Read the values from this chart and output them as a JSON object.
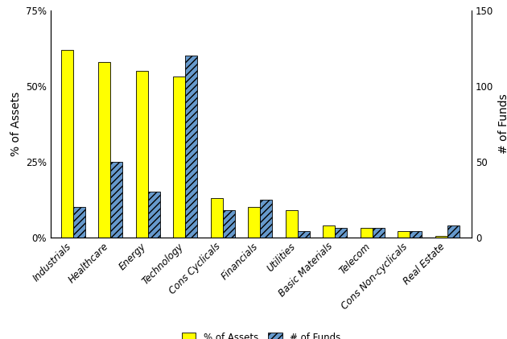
{
  "categories": [
    "Industrials",
    "Healthcare",
    "Energy",
    "Technology",
    "Cons Cyclicals",
    "Financials",
    "Utilities",
    "Basic Materials",
    "Telecom",
    "Cons Non-cyclicals",
    "Real Estate"
  ],
  "pct_assets": [
    62,
    58,
    55,
    53,
    13,
    10,
    9,
    4,
    3,
    2,
    0.5
  ],
  "num_funds": [
    20,
    50,
    30,
    120,
    18,
    25,
    4,
    6,
    6,
    4,
    8
  ],
  "bar_color_assets": "#ffff00",
  "bar_color_funds_face": "#6699cc",
  "ylabel_left": "% of Assets",
  "ylabel_right": "# of Funds",
  "ylim_left": [
    0,
    75
  ],
  "ylim_right": [
    0,
    150
  ],
  "yticks_left": [
    0,
    25,
    50,
    75
  ],
  "ytick_labels_left": [
    "0%",
    "25%",
    "50%",
    "75%"
  ],
  "yticks_right": [
    0,
    50,
    100,
    150
  ],
  "legend_labels": [
    "% of Assets",
    "# of Funds"
  ],
  "bar_width": 0.32,
  "background_color": "#ffffff",
  "axis_label_fontsize": 10,
  "tick_fontsize": 8.5,
  "legend_fontsize": 8.5
}
